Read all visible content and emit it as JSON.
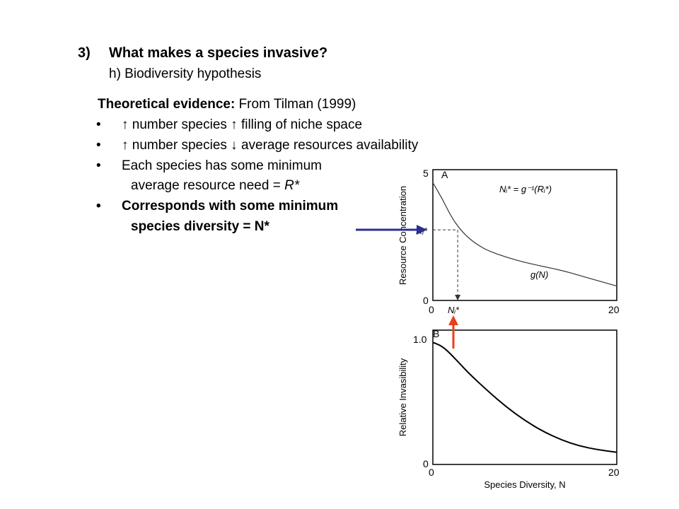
{
  "slide": {
    "heading_number": "3)",
    "heading": "What makes a species invasive?",
    "subheading": "h) Biodiversity hypothesis",
    "evidence_label": "Theoretical evidence:",
    "evidence_source": " From Tilman (1999)",
    "bullets": [
      {
        "symbol": "•",
        "text": "↑ number species ↑ filling of niche space"
      },
      {
        "symbol": "•",
        "text": "↑ number species ↓ average resources availability"
      },
      {
        "symbol": "•",
        "text": "Each species has some minimum"
      },
      {
        "symbol": "•",
        "text": "Corresponds with some minimum"
      }
    ],
    "bullet3_cont_prefix": "average resource need = ",
    "bullet3_cont_var": "R*",
    "bullet4_cont": "species diversity = N*"
  },
  "colors": {
    "blue_arrow": "#2b2f8f",
    "red_arrow": "#e8401c"
  },
  "chart_data": [
    {
      "type": "line",
      "panel_label": "A",
      "xlabel": "",
      "ylabel": "Resource Concentration",
      "xlim": [
        0,
        20
      ],
      "ylim": [
        0,
        5
      ],
      "x_ticks": [
        "0",
        "20"
      ],
      "y_ticks": [
        "0",
        "5"
      ],
      "equation": "Nᵢ* = g⁻¹(Rᵢ*)",
      "curve_label": "g(N)",
      "marker_x_label": "Nᵢ*",
      "marker_y_label": "Rᵢ*",
      "marker": {
        "x": 2.7,
        "y": 2.7
      },
      "series": [
        {
          "x": [
            0,
            1,
            2,
            3,
            4,
            5,
            6,
            8,
            10,
            12,
            14,
            16,
            18,
            20
          ],
          "y": [
            4.5,
            3.9,
            3.2,
            2.7,
            2.35,
            2.1,
            1.9,
            1.65,
            1.45,
            1.3,
            1.15,
            0.95,
            0.75,
            0.55
          ]
        }
      ]
    },
    {
      "type": "line",
      "panel_label": "B",
      "xlabel": "Species Diversity, N",
      "ylabel": "Relative Invasibility",
      "xlim": [
        0,
        20
      ],
      "ylim": [
        0,
        1.1
      ],
      "x_ticks": [
        "0",
        "20"
      ],
      "y_ticks": [
        "0",
        "1.0"
      ],
      "series": [
        {
          "x": [
            0,
            1,
            2,
            3,
            4,
            6,
            8,
            10,
            12,
            14,
            16,
            18,
            20
          ],
          "y": [
            1.0,
            0.97,
            0.9,
            0.82,
            0.74,
            0.6,
            0.47,
            0.36,
            0.27,
            0.2,
            0.15,
            0.12,
            0.1
          ]
        }
      ]
    }
  ]
}
